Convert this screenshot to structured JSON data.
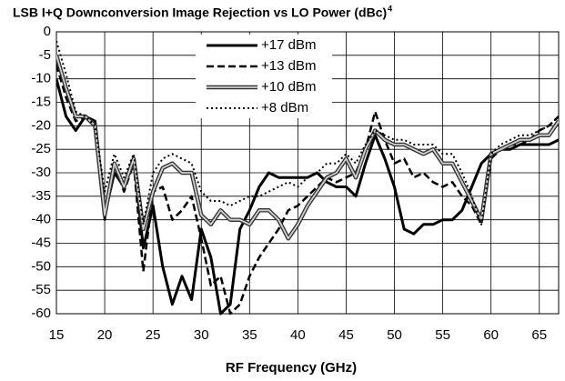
{
  "chart_data": {
    "type": "line",
    "title": "LSB I+Q Downconversion Image Rejection vs LO Power (dBc)",
    "title_superscript": "4",
    "x_label": "RF Frequency  (GHz)",
    "x": [
      15,
      16,
      17,
      18,
      19,
      20,
      21,
      22,
      23,
      24,
      25,
      26,
      27,
      28,
      29,
      30,
      31,
      32,
      33,
      34,
      35,
      36,
      37,
      38,
      39,
      40,
      41,
      42,
      43,
      44,
      45,
      46,
      47,
      48,
      49,
      50,
      51,
      52,
      53,
      54,
      55,
      56,
      57,
      58,
      59,
      60,
      61,
      62,
      63,
      64,
      65,
      66,
      67
    ],
    "series": [
      {
        "name": "+17 dBm",
        "color": "#000000",
        "style": "solid",
        "values": [
          -10,
          -18,
          -21,
          -18,
          -19,
          -39,
          -30,
          -33,
          -27,
          -46,
          -37,
          -50,
          -58,
          -52,
          -57,
          -42,
          -48,
          -60,
          -58,
          -42,
          -38,
          -33,
          -30,
          -31,
          -31,
          -31,
          -31,
          -30,
          -32,
          -33,
          -33,
          -35,
          -28,
          -22,
          -27,
          -33,
          -42,
          -43,
          -41,
          -41,
          -40,
          -40,
          -38,
          -33,
          -28,
          -26,
          -25,
          -25,
          -24,
          -24,
          -24,
          -24,
          -23
        ]
      },
      {
        "name": "+13 dBm",
        "color": "#000000",
        "style": "dash",
        "values": [
          -7,
          -14,
          -19,
          -18,
          -20,
          -40,
          -28,
          -34,
          -28,
          -51,
          -34,
          -33,
          -40,
          -38,
          -35,
          -44,
          -54,
          -52,
          -60,
          -58,
          -52,
          -48,
          -45,
          -42,
          -38,
          -37,
          -35,
          -33,
          -31,
          -32,
          -31,
          -30,
          -25,
          -17,
          -23,
          -28,
          -27,
          -31,
          -30,
          -32,
          -33,
          -32,
          -35,
          -37,
          -41,
          -27,
          -25,
          -24,
          -24,
          -23,
          -21,
          -20,
          -18
        ]
      },
      {
        "name": "+10 dBm",
        "color": "#333333",
        "style": "double",
        "values": [
          -5,
          -12,
          -18,
          -18,
          -20,
          -39,
          -28,
          -33,
          -27,
          -42,
          -34,
          -29,
          -28,
          -30,
          -30,
          -39,
          -41,
          -38,
          -40,
          -40,
          -41,
          -38,
          -38,
          -40,
          -44,
          -41,
          -37,
          -34,
          -31,
          -30,
          -27,
          -31,
          -25,
          -21,
          -23,
          -24,
          -24,
          -25,
          -26,
          -25,
          -28,
          -28,
          -32,
          -36,
          -40,
          -26,
          -25,
          -24,
          -23,
          -23,
          -22,
          -22,
          -19
        ]
      },
      {
        "name": "+8 dBm",
        "color": "#000000",
        "style": "dot",
        "values": [
          -2,
          -9,
          -17,
          -18,
          -20,
          -34,
          -26,
          -31,
          -26,
          -41,
          -30,
          -27,
          -26,
          -27,
          -28,
          -34,
          -36,
          -36,
          -37,
          -36,
          -35,
          -35,
          -34,
          -33,
          -32,
          -33,
          -31,
          -30,
          -28,
          -28,
          -26,
          -28,
          -24,
          -21,
          -22,
          -23,
          -23,
          -24,
          -24,
          -24,
          -26,
          -26,
          -30,
          -35,
          -41,
          -26,
          -24,
          -23,
          -22,
          -22,
          -21,
          -20,
          -18
        ]
      }
    ],
    "xlim": [
      15,
      67
    ],
    "xticks": [
      15,
      20,
      25,
      30,
      35,
      40,
      45,
      50,
      55,
      60,
      65
    ],
    "ylim": [
      -60,
      0
    ],
    "yticks": [
      0,
      -5,
      -10,
      -15,
      -20,
      -25,
      -30,
      -35,
      -40,
      -45,
      -50,
      -55,
      -60
    ],
    "grid": true
  }
}
